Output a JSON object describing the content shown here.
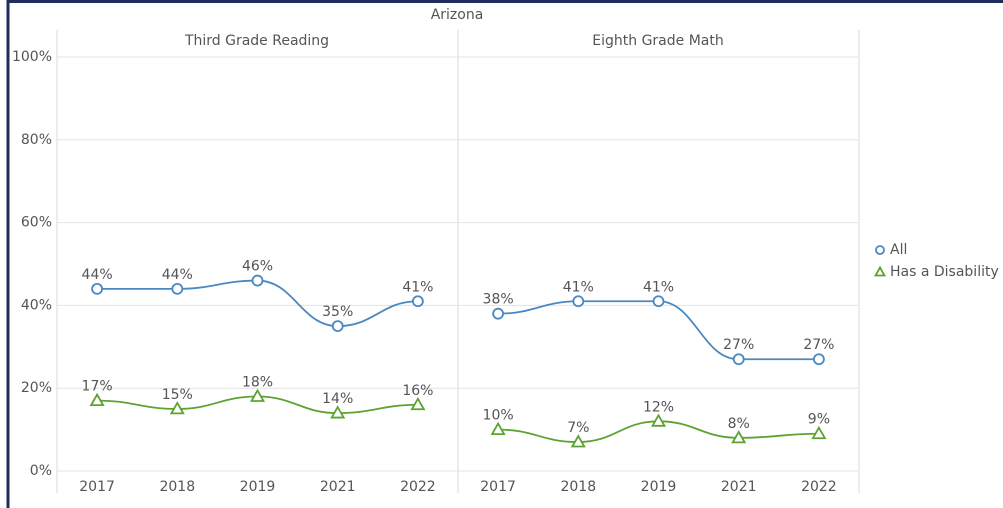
{
  "title": "Arizona",
  "chart_data": [
    {
      "type": "line",
      "title": "Third Grade Reading",
      "categories": [
        "2017",
        "2018",
        "2019",
        "2021",
        "2022"
      ],
      "series": [
        {
          "name": "All",
          "color": "#4a88c2",
          "marker": "circle",
          "values": [
            44,
            44,
            46,
            35,
            41
          ],
          "value_labels": [
            "44%",
            "44%",
            "46%",
            "35%",
            "41%"
          ]
        },
        {
          "name": "Has a Disability",
          "color": "#5ea232",
          "marker": "triangle",
          "values": [
            17,
            15,
            18,
            14,
            16
          ],
          "value_labels": [
            "17%",
            "15%",
            "18%",
            "14%",
            "16%"
          ]
        }
      ],
      "ylim": [
        0,
        100
      ],
      "yticks": [
        {
          "value": 0,
          "label": "0%"
        },
        {
          "value": 20,
          "label": "20%"
        },
        {
          "value": 40,
          "label": "40%"
        },
        {
          "value": 60,
          "label": "60%"
        },
        {
          "value": 80,
          "label": "80%"
        },
        {
          "value": 100,
          "label": "100%"
        }
      ],
      "grid": true
    },
    {
      "type": "line",
      "title": "Eighth Grade Math",
      "categories": [
        "2017",
        "2018",
        "2019",
        "2021",
        "2022"
      ],
      "series": [
        {
          "color": "#4a88c2",
          "marker": "circle",
          "values": [
            38,
            41,
            41,
            27,
            27
          ],
          "value_labels": [
            "38%",
            "41%",
            "41%",
            "27%",
            "27%"
          ]
        },
        {
          "color": "#5ea232",
          "marker": "triangle",
          "values": [
            10,
            7,
            12,
            8,
            9
          ],
          "value_labels": [
            "10%",
            "7%",
            "12%",
            "8%",
            "9%"
          ]
        }
      ],
      "ylim": [
        0,
        100
      ],
      "grid": true
    }
  ]
}
